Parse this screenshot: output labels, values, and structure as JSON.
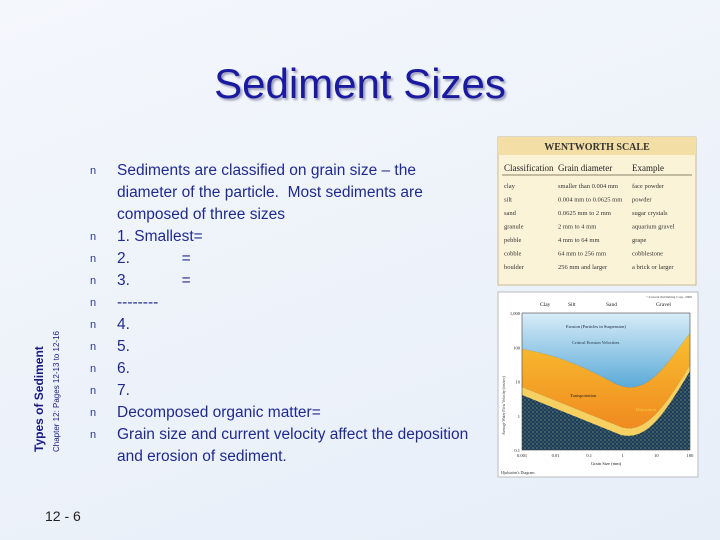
{
  "slide": {
    "title": "Sediment Sizes",
    "side_title": "Types of Sediment",
    "side_subtitle": "Chapter 12: Pages 12-13 to 12-16",
    "page_number": "12 - 6",
    "bullet_marker": "n",
    "bullets": [
      "Sediments are classified on grain size – the diameter of the particle.  Most sediments are composed of three sizes",
      "1. Smallest=",
      "2.            =",
      "3.            =",
      "--------",
      "4.",
      "5.",
      "6.",
      "7.",
      "Decomposed organic matter=",
      "Grain size and current velocity affect the deposition and erosion of sediment."
    ],
    "wentworth_table": {
      "title": "WENTWORTH SCALE",
      "headers": [
        "Classification",
        "Grain diameter",
        "Example"
      ],
      "rows": [
        [
          "clay",
          "smaller than 0.004 mm",
          "face powder"
        ],
        [
          "silt",
          "0.004 mm to 0.0625 mm",
          "powder"
        ],
        [
          "sand",
          "0.0625 mm to 2 mm",
          "sugar crystals"
        ],
        [
          "granule",
          "2 mm to 4 mm",
          "aquarium gravel"
        ],
        [
          "pebble",
          "4 mm to 64 mm",
          "grape"
        ],
        [
          "cobble",
          "64 mm to 256 mm",
          "cobblestone"
        ],
        [
          "boulder",
          "256 mm and larger",
          "a brick or larger"
        ]
      ]
    },
    "hjulstrom_diagram": {
      "size_classes": [
        "Clay",
        "Silt",
        "Sand",
        "Gravel"
      ],
      "credit": "©Current Publishing Corp. 2000",
      "y_label": "Average Water Flow Velocity (cm/sec)",
      "x_label": "Grain Size (mm)",
      "y_ticks": [
        "1,000",
        "100",
        "10",
        "1",
        "0.1"
      ],
      "x_ticks": [
        "0.001",
        "0.01",
        "0.1",
        "1",
        "10",
        "100"
      ],
      "regions": [
        "Erosion (Particles in Suspension)",
        "Critical Erosion Velocities",
        "Transportation",
        "Deposition"
      ],
      "caption": "Hjulström's Diagram"
    }
  }
}
